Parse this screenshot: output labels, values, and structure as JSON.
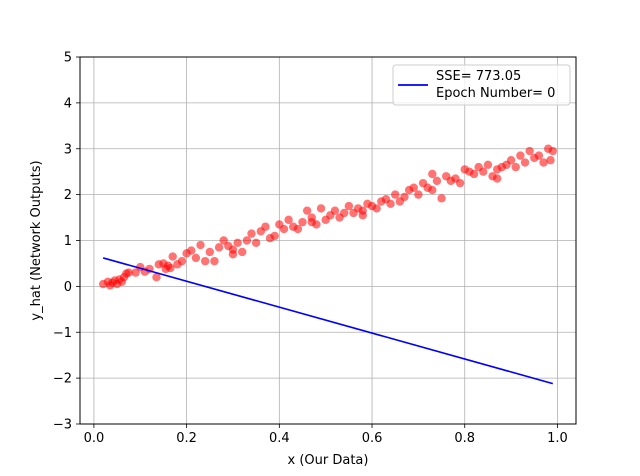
{
  "chart_data": {
    "type": "scatter",
    "xlabel": "x (Our Data)",
    "ylabel": "y_hat (Network Outputs)",
    "xlim": [
      -0.03,
      1.04
    ],
    "ylim": [
      -3,
      5
    ],
    "xticks": [
      0.0,
      0.2,
      0.4,
      0.6,
      0.8,
      1.0
    ],
    "xtick_labels": [
      "0.0",
      "0.2",
      "0.4",
      "0.6",
      "0.8",
      "1.0"
    ],
    "yticks": [
      -3,
      -2,
      -1,
      0,
      1,
      2,
      3,
      4,
      5
    ],
    "ytick_labels": [
      "−3",
      "−2",
      "−1",
      "0",
      "1",
      "2",
      "3",
      "4",
      "5"
    ],
    "grid": true,
    "legend_position": "top-right",
    "legend": [
      "SSE= 773.05",
      "Epoch Number= 0"
    ],
    "series": [
      {
        "kind": "scatter",
        "color": "#ff0000",
        "opacity": 0.55,
        "points": [
          [
            0.02,
            0.05
          ],
          [
            0.03,
            0.1
          ],
          [
            0.035,
            0.02
          ],
          [
            0.04,
            0.08
          ],
          [
            0.045,
            0.13
          ],
          [
            0.05,
            0.05
          ],
          [
            0.055,
            0.15
          ],
          [
            0.06,
            0.1
          ],
          [
            0.065,
            0.2
          ],
          [
            0.07,
            0.28
          ],
          [
            0.075,
            0.3
          ],
          [
            0.09,
            0.3
          ],
          [
            0.1,
            0.42
          ],
          [
            0.11,
            0.32
          ],
          [
            0.12,
            0.38
          ],
          [
            0.135,
            0.2
          ],
          [
            0.14,
            0.48
          ],
          [
            0.15,
            0.5
          ],
          [
            0.155,
            0.38
          ],
          [
            0.16,
            0.45
          ],
          [
            0.165,
            0.4
          ],
          [
            0.17,
            0.65
          ],
          [
            0.18,
            0.48
          ],
          [
            0.19,
            0.55
          ],
          [
            0.2,
            0.72
          ],
          [
            0.21,
            0.78
          ],
          [
            0.22,
            0.62
          ],
          [
            0.23,
            0.9
          ],
          [
            0.24,
            0.55
          ],
          [
            0.25,
            0.75
          ],
          [
            0.26,
            0.55
          ],
          [
            0.27,
            0.85
          ],
          [
            0.28,
            1.0
          ],
          [
            0.29,
            0.88
          ],
          [
            0.3,
            0.8
          ],
          [
            0.31,
            0.95
          ],
          [
            0.32,
            0.75
          ],
          [
            0.33,
            1.0
          ],
          [
            0.34,
            1.15
          ],
          [
            0.35,
            0.95
          ],
          [
            0.36,
            1.2
          ],
          [
            0.37,
            1.3
          ],
          [
            0.38,
            1.05
          ],
          [
            0.39,
            1.1
          ],
          [
            0.4,
            1.35
          ],
          [
            0.41,
            1.25
          ],
          [
            0.42,
            1.45
          ],
          [
            0.43,
            1.3
          ],
          [
            0.44,
            1.25
          ],
          [
            0.45,
            1.4
          ],
          [
            0.46,
            1.65
          ],
          [
            0.47,
            1.5
          ],
          [
            0.48,
            1.35
          ],
          [
            0.49,
            1.7
          ],
          [
            0.5,
            1.45
          ],
          [
            0.51,
            1.55
          ],
          [
            0.52,
            1.65
          ],
          [
            0.53,
            1.5
          ],
          [
            0.54,
            1.6
          ],
          [
            0.55,
            1.75
          ],
          [
            0.56,
            1.6
          ],
          [
            0.57,
            1.7
          ],
          [
            0.58,
            1.55
          ],
          [
            0.59,
            1.8
          ],
          [
            0.6,
            1.75
          ],
          [
            0.61,
            1.7
          ],
          [
            0.62,
            1.85
          ],
          [
            0.63,
            1.9
          ],
          [
            0.64,
            1.8
          ],
          [
            0.65,
            2.0
          ],
          [
            0.66,
            1.85
          ],
          [
            0.67,
            1.95
          ],
          [
            0.68,
            2.1
          ],
          [
            0.69,
            2.15
          ],
          [
            0.7,
            2.0
          ],
          [
            0.71,
            2.25
          ],
          [
            0.72,
            2.15
          ],
          [
            0.73,
            2.1
          ],
          [
            0.74,
            2.3
          ],
          [
            0.75,
            1.92
          ],
          [
            0.76,
            2.4
          ],
          [
            0.77,
            2.3
          ],
          [
            0.78,
            2.35
          ],
          [
            0.79,
            2.25
          ],
          [
            0.8,
            2.55
          ],
          [
            0.81,
            2.5
          ],
          [
            0.82,
            2.45
          ],
          [
            0.83,
            2.6
          ],
          [
            0.84,
            2.5
          ],
          [
            0.85,
            2.65
          ],
          [
            0.86,
            2.4
          ],
          [
            0.87,
            2.35
          ],
          [
            0.88,
            2.6
          ],
          [
            0.89,
            2.65
          ],
          [
            0.9,
            2.75
          ],
          [
            0.91,
            2.6
          ],
          [
            0.92,
            2.85
          ],
          [
            0.93,
            2.7
          ],
          [
            0.94,
            2.95
          ],
          [
            0.95,
            2.8
          ],
          [
            0.96,
            2.85
          ],
          [
            0.97,
            2.7
          ],
          [
            0.98,
            3.0
          ],
          [
            0.99,
            2.95
          ],
          [
            0.985,
            2.75
          ],
          [
            0.3,
            0.7
          ],
          [
            0.47,
            1.4
          ],
          [
            0.58,
            1.65
          ],
          [
            0.73,
            2.45
          ],
          [
            0.87,
            2.55
          ]
        ]
      },
      {
        "kind": "line",
        "color": "#0000ff",
        "points": [
          [
            0.02,
            0.62
          ],
          [
            0.99,
            -2.12
          ]
        ]
      }
    ]
  }
}
